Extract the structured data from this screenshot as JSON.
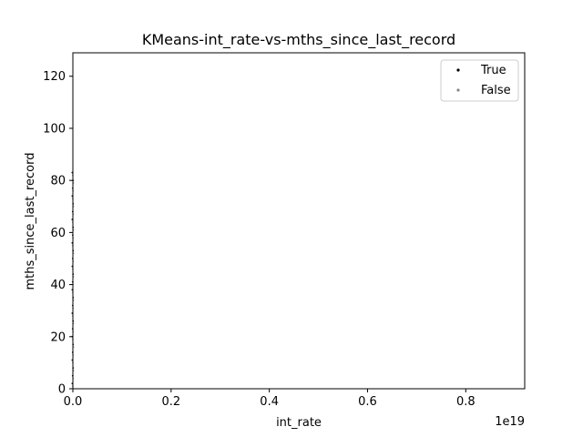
{
  "chart_data": {
    "type": "scatter",
    "title": "KMeans-int_rate-vs-mths_since_last_record",
    "xlabel": "int_rate",
    "ylabel": "mths_since_last_record",
    "x_offset_text": "1e19",
    "xlim": [
      0,
      0.92
    ],
    "ylim": [
      0,
      129
    ],
    "x_ticks": [
      {
        "value": 0.0,
        "label": "0.0"
      },
      {
        "value": 0.2,
        "label": "0.2"
      },
      {
        "value": 0.4,
        "label": "0.4"
      },
      {
        "value": 0.6,
        "label": "0.6"
      },
      {
        "value": 0.8,
        "label": "0.8"
      }
    ],
    "y_ticks": [
      {
        "value": 0,
        "label": "0"
      },
      {
        "value": 20,
        "label": "20"
      },
      {
        "value": 40,
        "label": "40"
      },
      {
        "value": 60,
        "label": "60"
      },
      {
        "value": 80,
        "label": "80"
      },
      {
        "value": 100,
        "label": "100"
      },
      {
        "value": 120,
        "label": "120"
      }
    ],
    "legend": {
      "position": "upper-right",
      "entries": [
        {
          "label": "True",
          "color": "#000000"
        },
        {
          "label": "False",
          "color": "#888888"
        }
      ]
    },
    "grid": false,
    "series": [
      {
        "name": "True",
        "color": "#000000",
        "points": [
          {
            "x": 0.0,
            "y": 2
          },
          {
            "x": 0.0,
            "y": 5
          },
          {
            "x": 0.0,
            "y": 8
          },
          {
            "x": 0.0,
            "y": 11
          },
          {
            "x": 0.0,
            "y": 14
          },
          {
            "x": 0.0,
            "y": 17
          },
          {
            "x": 0.0,
            "y": 20
          },
          {
            "x": 0.0,
            "y": 23
          },
          {
            "x": 0.0,
            "y": 26
          },
          {
            "x": 0.0,
            "y": 29
          },
          {
            "x": 0.0,
            "y": 32
          },
          {
            "x": 0.0,
            "y": 35
          },
          {
            "x": 0.0,
            "y": 38
          },
          {
            "x": 0.0,
            "y": 41
          },
          {
            "x": 0.0,
            "y": 44
          },
          {
            "x": 0.0,
            "y": 47
          },
          {
            "x": 0.0,
            "y": 50
          },
          {
            "x": 0.0,
            "y": 53
          },
          {
            "x": 0.0,
            "y": 56
          },
          {
            "x": 0.0,
            "y": 59
          },
          {
            "x": 0.0,
            "y": 62
          },
          {
            "x": 0.0,
            "y": 65
          },
          {
            "x": 0.0,
            "y": 68
          },
          {
            "x": 0.0,
            "y": 71
          },
          {
            "x": 0.0,
            "y": 74
          },
          {
            "x": 0.0,
            "y": 77
          },
          {
            "x": 0.0,
            "y": 80
          },
          {
            "x": 0.0,
            "y": 83
          }
        ]
      },
      {
        "name": "False",
        "color": "#888888",
        "points": [
          {
            "x": 0.0,
            "y": 1
          },
          {
            "x": 0.0,
            "y": 4
          },
          {
            "x": 0.0,
            "y": 7
          },
          {
            "x": 0.0,
            "y": 10
          },
          {
            "x": 0.0,
            "y": 13
          },
          {
            "x": 0.0,
            "y": 16
          },
          {
            "x": 0.0,
            "y": 19
          },
          {
            "x": 0.0,
            "y": 22
          },
          {
            "x": 0.0,
            "y": 25
          },
          {
            "x": 0.0,
            "y": 28
          },
          {
            "x": 0.0,
            "y": 31
          },
          {
            "x": 0.0,
            "y": 34
          },
          {
            "x": 0.0,
            "y": 37
          },
          {
            "x": 0.0,
            "y": 40
          },
          {
            "x": 0.0,
            "y": 43
          },
          {
            "x": 0.0,
            "y": 46
          },
          {
            "x": 0.0,
            "y": 49
          },
          {
            "x": 0.0,
            "y": 52
          },
          {
            "x": 0.0,
            "y": 55
          },
          {
            "x": 0.0,
            "y": 58
          },
          {
            "x": 0.0,
            "y": 61
          },
          {
            "x": 0.0,
            "y": 64
          },
          {
            "x": 0.0,
            "y": 67
          },
          {
            "x": 0.0,
            "y": 70
          },
          {
            "x": 0.0,
            "y": 73
          },
          {
            "x": 0.0,
            "y": 76
          },
          {
            "x": 0.0,
            "y": 79
          },
          {
            "x": 0.0,
            "y": 82
          }
        ]
      }
    ]
  }
}
